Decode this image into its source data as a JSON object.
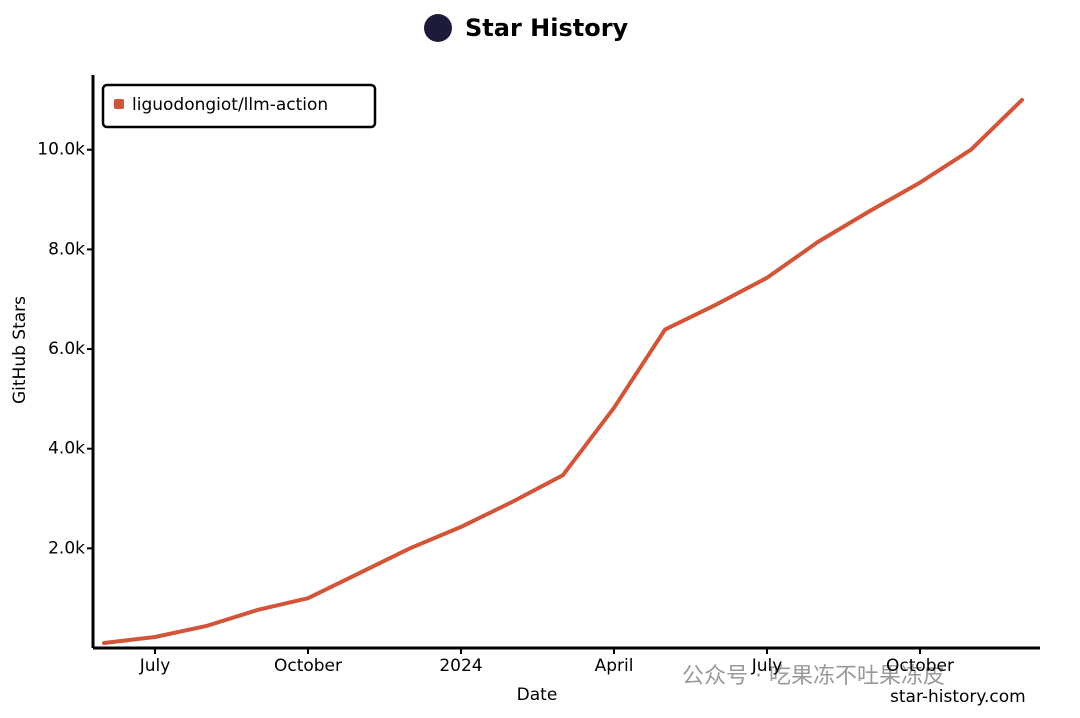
{
  "chart_data": {
    "type": "line",
    "title": "Star History",
    "x_label": "Date",
    "y_label": "GitHub Stars",
    "x": [
      "2023-06",
      "2023-07",
      "2023-08",
      "2023-09",
      "2023-10",
      "2023-11",
      "2023-12",
      "2024-01",
      "2024-02",
      "2024-03",
      "2024-04",
      "2024-05",
      "2024-06",
      "2024-07",
      "2024-08",
      "2024-09",
      "2024-10",
      "2024-11",
      "2024-12"
    ],
    "series": [
      {
        "name": "liguodongiot/llm-action",
        "color": "#d2553a",
        "values": [
          100,
          220,
          440,
          760,
          1000,
          1500,
          2000,
          2430,
          2930,
          3470,
          4820,
          6390,
          6890,
          7430,
          8150,
          8760,
          9340,
          10000,
          11000
        ]
      }
    ],
    "xlim": [
      "2023-05",
      "2024-12"
    ],
    "xticks": [
      {
        "value": "2023-07",
        "label": "July"
      },
      {
        "value": "2023-10",
        "label": "October"
      },
      {
        "value": "2024-01",
        "label": "2024"
      },
      {
        "value": "2024-04",
        "label": "April"
      },
      {
        "value": "2024-07",
        "label": "July"
      },
      {
        "value": "2024-10",
        "label": "October"
      }
    ],
    "ylim": [
      0,
      11500
    ],
    "yticks": [
      {
        "value": 2000,
        "label": "2.0k"
      },
      {
        "value": 4000,
        "label": "4.0k"
      },
      {
        "value": 6000,
        "label": "6.0k"
      },
      {
        "value": 8000,
        "label": "8.0k"
      },
      {
        "value": 10000,
        "label": "10.0k"
      }
    ],
    "legend": "top-left",
    "watermarks": [
      "star-history.com",
      "公众号 · 吃果冻不吐果冻皮"
    ]
  }
}
